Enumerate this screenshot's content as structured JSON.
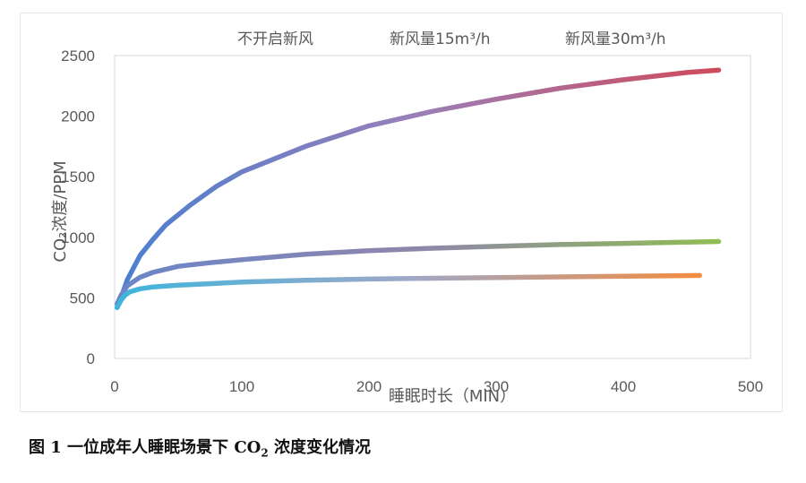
{
  "chart_data": {
    "type": "line",
    "ylabel": "CO₂浓度/PPM",
    "xlabel": "睡眠时长（MIN）",
    "xlim": [
      0,
      500
    ],
    "ylim": [
      0,
      2500
    ],
    "xticks": [
      0,
      100,
      200,
      300,
      400,
      500
    ],
    "yticks": [
      0,
      500,
      1000,
      1500,
      2000,
      2500
    ],
    "grid": false,
    "legend_position": "top",
    "series": [
      {
        "name": "不开启新风",
        "colors": [
          "#4a7fd0",
          "#9a7fb8",
          "#cf4a5a"
        ],
        "x": [
          2,
          5,
          10,
          20,
          30,
          40,
          60,
          80,
          100,
          150,
          200,
          250,
          300,
          350,
          400,
          450,
          475
        ],
        "y": [
          420,
          500,
          650,
          850,
          980,
          1100,
          1270,
          1420,
          1540,
          1750,
          1920,
          2040,
          2140,
          2230,
          2300,
          2360,
          2380
        ]
      },
      {
        "name": "新风量15m³/h",
        "colors": [
          "#6a86c8",
          "#8f86ab",
          "#8fbd52"
        ],
        "x": [
          2,
          5,
          10,
          20,
          30,
          50,
          75,
          100,
          150,
          200,
          250,
          300,
          350,
          400,
          450,
          475
        ],
        "y": [
          450,
          520,
          600,
          670,
          710,
          760,
          790,
          815,
          860,
          890,
          910,
          925,
          940,
          950,
          960,
          965
        ]
      },
      {
        "name": "新风量30m³/h",
        "colors": [
          "#3fb4dc",
          "#9ea8c8",
          "#f28c40"
        ],
        "x": [
          2,
          5,
          8,
          12,
          20,
          30,
          50,
          80,
          100,
          150,
          200,
          250,
          300,
          350,
          400,
          460
        ],
        "y": [
          420,
          480,
          520,
          550,
          575,
          590,
          605,
          620,
          630,
          645,
          655,
          662,
          668,
          673,
          678,
          685
        ]
      }
    ]
  },
  "caption": {
    "prefix": "图 1 一位成年人睡眠场景下 CO",
    "subscript": "2",
    "suffix": " 浓度变化情况"
  }
}
